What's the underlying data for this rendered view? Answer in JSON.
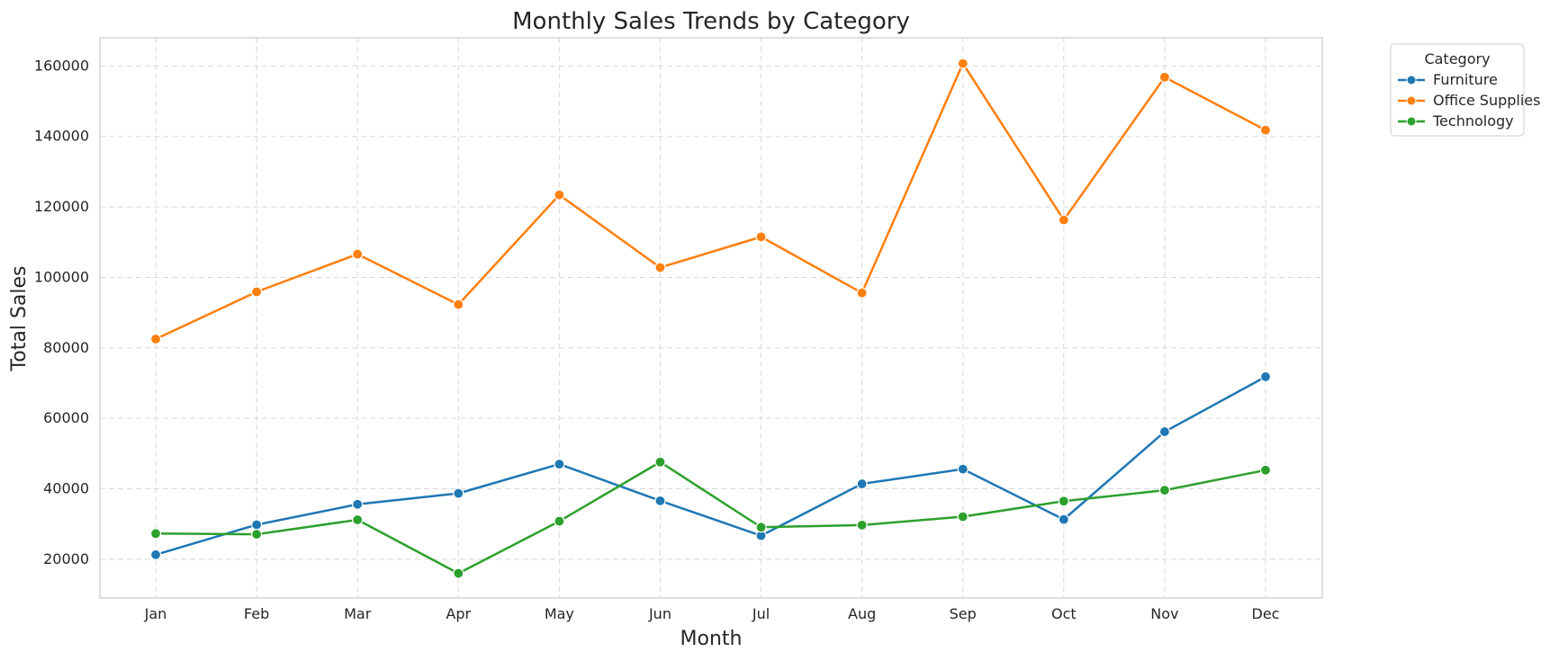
{
  "chart_data": {
    "type": "line",
    "title": "Monthly Sales Trends by Category",
    "xlabel": "Month",
    "ylabel": "Total Sales",
    "categories": [
      "Jan",
      "Feb",
      "Mar",
      "Apr",
      "May",
      "Jun",
      "Jul",
      "Aug",
      "Sep",
      "Oct",
      "Nov",
      "Dec"
    ],
    "ylim": [
      9000,
      168000
    ],
    "yticks": [
      20000,
      40000,
      60000,
      80000,
      100000,
      120000,
      140000,
      160000
    ],
    "ytick_labels": [
      "20000",
      "40000",
      "60000",
      "80000",
      "100000",
      "120000",
      "140000",
      "160000"
    ],
    "grid": true,
    "legend": {
      "title": "Category",
      "placement": "outside top-right"
    },
    "series": [
      {
        "name": "Furniture",
        "color": "#1f77b4",
        "marker": "circle",
        "values": [
          21300,
          29800,
          35600,
          38700,
          47000,
          36600,
          26700,
          41400,
          45600,
          31300,
          56200,
          71800
        ]
      },
      {
        "name": "Office Supplies",
        "color": "#ff7f0e",
        "marker": "circle",
        "values": [
          82500,
          95900,
          106600,
          92300,
          123400,
          102800,
          111500,
          95600,
          160700,
          116300,
          156800,
          141800
        ]
      },
      {
        "name": "Technology",
        "color": "#2ca02c",
        "marker": "circle",
        "values": [
          27300,
          27100,
          31200,
          16000,
          30800,
          47600,
          29100,
          29700,
          32100,
          36500,
          39600,
          45300
        ]
      }
    ]
  }
}
